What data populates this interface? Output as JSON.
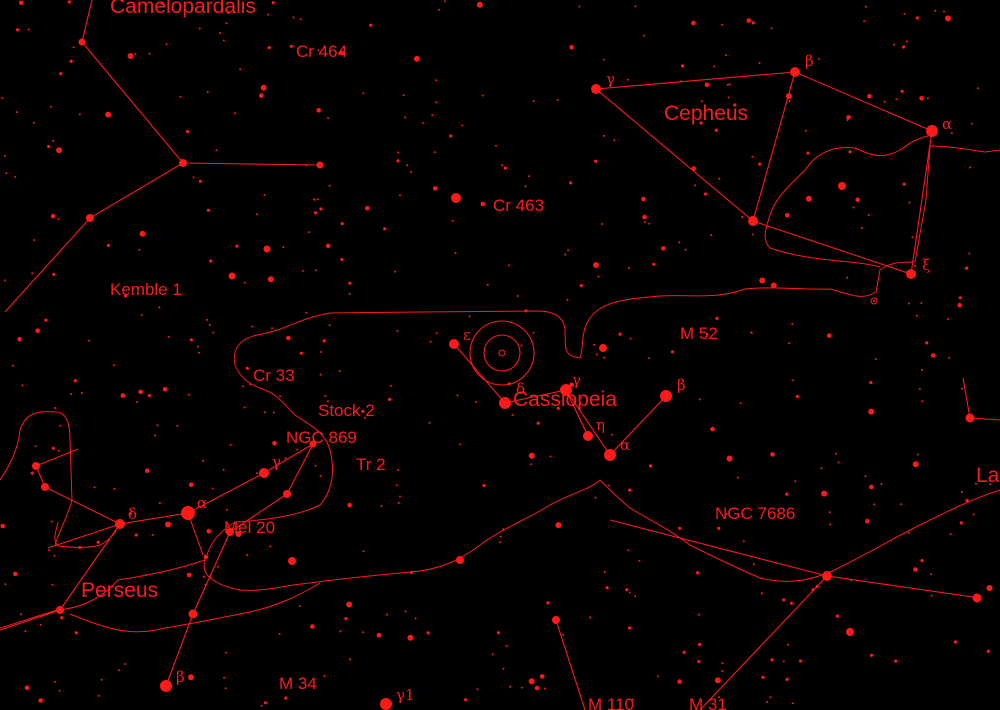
{
  "map": {
    "colors": {
      "foreground": "#ff1a1a",
      "background": "#000000"
    },
    "constellations": [
      {
        "key": "camelopardalis",
        "label": "Camelopardalis"
      },
      {
        "key": "cepheus",
        "label": "Cepheus"
      },
      {
        "key": "cassiopeia",
        "label": "Cassiopeia"
      },
      {
        "key": "perseus",
        "label": "Perseus"
      },
      {
        "key": "lacerta",
        "label": "La"
      }
    ],
    "objects": [
      {
        "key": "cr464",
        "label": "Cr 464"
      },
      {
        "key": "cr463",
        "label": "Cr 463"
      },
      {
        "key": "kemble1",
        "label": "Kemble 1"
      },
      {
        "key": "cr33",
        "label": "Cr 33"
      },
      {
        "key": "m52",
        "label": "M 52"
      },
      {
        "key": "stock2",
        "label": "Stock 2"
      },
      {
        "key": "ngc869",
        "label": "NGC 869"
      },
      {
        "key": "tr2",
        "label": "Tr 2"
      },
      {
        "key": "mel20",
        "label": "Mel 20"
      },
      {
        "key": "ngc7686",
        "label": "NGC 7686"
      },
      {
        "key": "m34",
        "label": "M 34"
      },
      {
        "key": "m110",
        "label": "M 110"
      },
      {
        "key": "m31",
        "label": "M 31"
      }
    ],
    "greek_letters": [
      {
        "key": "cep_gamma",
        "label": "γ"
      },
      {
        "key": "cep_beta",
        "label": "β"
      },
      {
        "key": "cep_alpha",
        "label": "α"
      },
      {
        "key": "cep_xi",
        "label": "ξ"
      },
      {
        "key": "cas_epsilon",
        "label": "ε"
      },
      {
        "key": "cas_delta",
        "label": "δ"
      },
      {
        "key": "cas_gamma",
        "label": "γ"
      },
      {
        "key": "cas_eta",
        "label": "η"
      },
      {
        "key": "cas_alpha",
        "label": "α"
      },
      {
        "key": "cas_beta",
        "label": "β"
      },
      {
        "key": "per_gamma",
        "label": "γ"
      },
      {
        "key": "per_delta",
        "label": "δ"
      },
      {
        "key": "per_alpha",
        "label": "α"
      },
      {
        "key": "per_beta",
        "label": "β"
      },
      {
        "key": "and_gamma1",
        "label": "γ1"
      }
    ]
  }
}
